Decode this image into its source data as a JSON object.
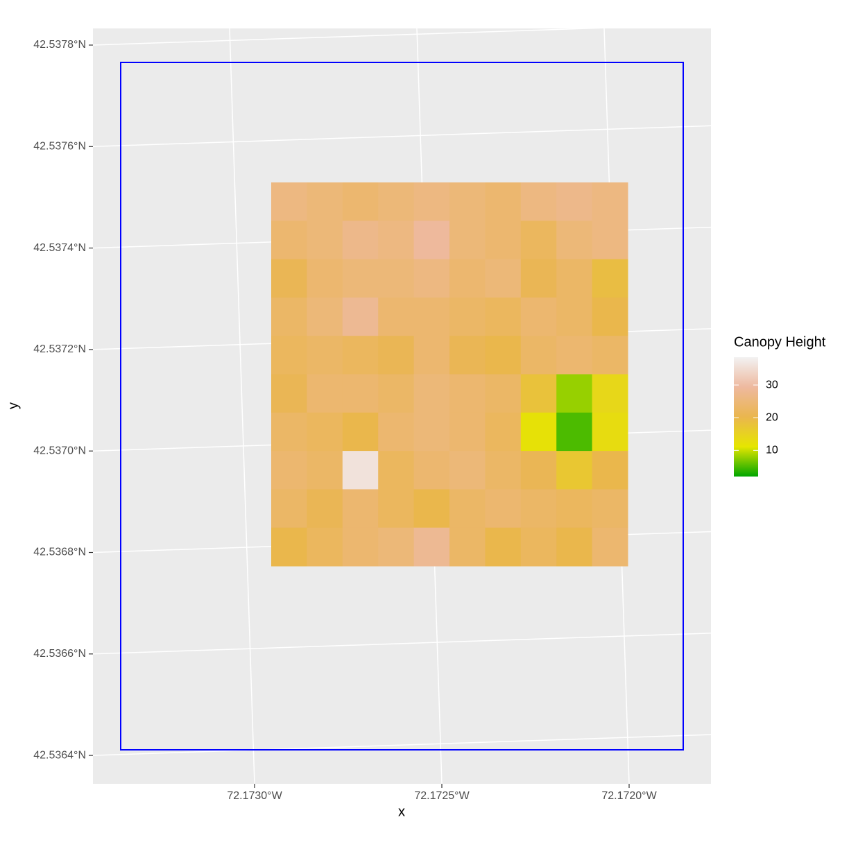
{
  "chart_data": {
    "type": "raster",
    "x_label": "x",
    "y_label": "y",
    "raster": [
      [
        26,
        25,
        24,
        25,
        26,
        25,
        24,
        26,
        27,
        26
      ],
      [
        24,
        25,
        27,
        26,
        29,
        25,
        24,
        22,
        25,
        26
      ],
      [
        21,
        24,
        25,
        25,
        26,
        24,
        25,
        21,
        23,
        19
      ],
      [
        23,
        25,
        28,
        24,
        24,
        23,
        22,
        24,
        23,
        20
      ],
      [
        22,
        23,
        22,
        21,
        24,
        21,
        20,
        23,
        24,
        23
      ],
      [
        21,
        24,
        24,
        23,
        25,
        24,
        23,
        18,
        8,
        14
      ],
      [
        23,
        22,
        20,
        24,
        25,
        24,
        22,
        12,
        5,
        13
      ],
      [
        24,
        23,
        36,
        22,
        24,
        25,
        23,
        21,
        17,
        20
      ],
      [
        23,
        21,
        24,
        22,
        20,
        23,
        24,
        23,
        22,
        23
      ],
      [
        20,
        22,
        24,
        25,
        28,
        23,
        20,
        22,
        20,
        24
      ]
    ],
    "xticks": [
      {
        "value": -72.173,
        "label": "72.1730°W"
      },
      {
        "value": -72.1725,
        "label": "72.1725°W"
      },
      {
        "value": -72.172,
        "label": "72.1720°W"
      }
    ],
    "yticks": [
      {
        "value": 42.5378,
        "label": "42.5378°N"
      },
      {
        "value": 42.5376,
        "label": "42.5376°N"
      },
      {
        "value": 42.5374,
        "label": "42.5374°N"
      },
      {
        "value": 42.5372,
        "label": "42.5372°N"
      },
      {
        "value": 42.537,
        "label": "42.5370°N"
      },
      {
        "value": 42.5368,
        "label": "42.5368°N"
      },
      {
        "value": 42.5366,
        "label": "42.5366°N"
      },
      {
        "value": 42.5364,
        "label": "42.5364°N"
      }
    ],
    "grid": true,
    "legend": {
      "title": "Canopy Height",
      "limits": [
        2,
        38.5
      ],
      "ticks": [
        10,
        20,
        30
      ],
      "colors": [
        "#00A600",
        "#E6E600",
        "#EAB64E",
        "#EEB99F",
        "#F2F2F2"
      ]
    }
  }
}
